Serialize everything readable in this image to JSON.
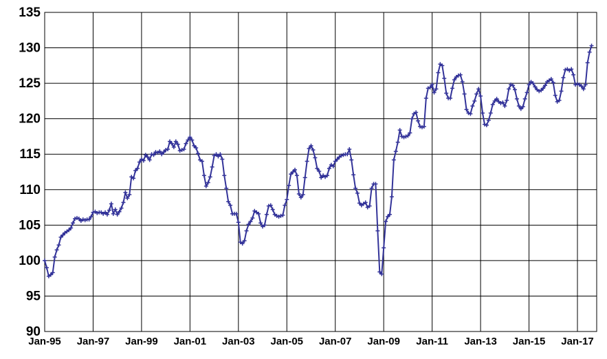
{
  "chart_data": {
    "type": "line",
    "categories": [
      "Jan-95",
      null,
      null,
      null,
      null,
      null,
      null,
      null,
      null,
      null,
      null,
      null,
      null,
      null,
      null,
      null,
      null,
      null,
      null,
      null,
      null,
      null,
      null,
      null,
      "Jan-97",
      null,
      null,
      null,
      null,
      null,
      null,
      null,
      null,
      null,
      null,
      null,
      null,
      null,
      null,
      null,
      null,
      null,
      null,
      null,
      null,
      null,
      null,
      null,
      "Jan-99",
      null,
      null,
      null,
      null,
      null,
      null,
      null,
      null,
      null,
      null,
      null,
      null,
      null,
      null,
      null,
      null,
      null,
      null,
      null,
      null,
      null,
      null,
      null,
      "Jan-01",
      null,
      null,
      null,
      null,
      null,
      null,
      null,
      null,
      null,
      null,
      null,
      null,
      null,
      null,
      null,
      null,
      null,
      null,
      null,
      null,
      null,
      null,
      null,
      "Jan-03",
      null,
      null,
      null,
      null,
      null,
      null,
      null,
      null,
      null,
      null,
      null,
      null,
      null,
      null,
      null,
      null,
      null,
      null,
      null,
      null,
      null,
      null,
      null,
      "Jan-05",
      null,
      null,
      null,
      null,
      null,
      null,
      null,
      null,
      null,
      null,
      null,
      null,
      null,
      null,
      null,
      null,
      null,
      null,
      null,
      null,
      null,
      null,
      null,
      "Jan-07",
      null,
      null,
      null,
      null,
      null,
      null,
      null,
      null,
      null,
      null,
      null,
      null,
      null,
      null,
      null,
      null,
      null,
      null,
      null,
      null,
      null,
      null,
      null,
      "Jan-09",
      null,
      null,
      null,
      null,
      null,
      null,
      null,
      null,
      null,
      null,
      null,
      null,
      null,
      null,
      null,
      null,
      null,
      null,
      null,
      null,
      null,
      null,
      null,
      "Jan-11",
      null,
      null,
      null,
      null,
      null,
      null,
      null,
      null,
      null,
      null,
      null,
      null,
      null,
      null,
      null,
      null,
      null,
      null,
      null,
      null,
      null,
      null,
      null,
      "Jan-13",
      null,
      null,
      null,
      null,
      null,
      null,
      null,
      null,
      null,
      null,
      null,
      null,
      null,
      null,
      null,
      null,
      null,
      null,
      null,
      null,
      null,
      null,
      null,
      "Jan-15",
      null,
      null,
      null,
      null,
      null,
      null,
      null,
      null,
      null,
      null,
      null,
      null,
      null,
      null,
      null,
      null,
      null,
      null,
      null,
      null,
      null,
      null,
      null,
      "Jan-17",
      null,
      null,
      null,
      null,
      null,
      null,
      null
    ],
    "series": [
      {
        "color": "#333399",
        "values": [
          100,
          99,
          97.8,
          98,
          98.3,
          100.5,
          101.5,
          102.2,
          103.3,
          103.6,
          103.9,
          104.1,
          104.3,
          104.6,
          105.3,
          105.9,
          106,
          105.9,
          105.6,
          105.8,
          105.7,
          105.8,
          105.8,
          106.2,
          106.8,
          106.9,
          106.7,
          106.8,
          106.8,
          106.6,
          106.8,
          106.5,
          107.1,
          108,
          106.6,
          107.2,
          106.5,
          106.9,
          107.4,
          108.2,
          109.6,
          108.8,
          109.3,
          111.8,
          111.6,
          112.7,
          113,
          113.9,
          114.3,
          114.1,
          114.9,
          114.6,
          114.2,
          115,
          114.9,
          115.3,
          115.2,
          115.4,
          115,
          115.3,
          115.6,
          115.7,
          116.8,
          116.5,
          116,
          116.8,
          116.4,
          115.5,
          115.6,
          115.7,
          116.5,
          117,
          117.4,
          117,
          116.2,
          115.9,
          115.1,
          114.2,
          114,
          112,
          110.5,
          111,
          111.8,
          113.2,
          114.8,
          115,
          114.7,
          115,
          114.3,
          112,
          110.2,
          108.3,
          107.8,
          106.6,
          106.6,
          106.6,
          105.4,
          102.6,
          102.4,
          102.8,
          104.2,
          105.1,
          105.5,
          106,
          107,
          106.8,
          106.6,
          105.3,
          104.8,
          105,
          106.5,
          107.7,
          107.8,
          107.2,
          106.5,
          106.3,
          106.2,
          106.3,
          106.4,
          107.8,
          108.6,
          110.6,
          112.2,
          112.5,
          112.8,
          112,
          109.4,
          108.9,
          109.3,
          111.7,
          114,
          115.8,
          116.2,
          115.6,
          114.5,
          113,
          112.6,
          111.7,
          112,
          111.8,
          112,
          113,
          113.5,
          113.3,
          114,
          114.3,
          114.6,
          114.8,
          114.9,
          115,
          115,
          115.7,
          114.2,
          112.1,
          110.2,
          109.5,
          108.1,
          107.8,
          108,
          108.2,
          107.5,
          107.7,
          110.2,
          110.8,
          110.8,
          104.2,
          98.4,
          98.1,
          101.8,
          105.5,
          106.2,
          106.5,
          109,
          114.2,
          115.4,
          116.7,
          118.4,
          117.5,
          117.4,
          117.5,
          117.6,
          118,
          120,
          120.7,
          120.9,
          119.7,
          118.9,
          118.8,
          118.9,
          122.9,
          124.3,
          124.4,
          124.8,
          123.7,
          124.2,
          126.5,
          127.7,
          127.5,
          125.7,
          123.6,
          122.9,
          122.9,
          124.3,
          125.5,
          125.9,
          126.1,
          126.2,
          125.2,
          123.5,
          121.3,
          120.8,
          120.7,
          121.8,
          122.5,
          123.5,
          124.2,
          123.2,
          120.8,
          119.2,
          119.1,
          119.8,
          120.8,
          122,
          122.5,
          122.8,
          122.4,
          122.2,
          122.3,
          121.8,
          122.6,
          124.2,
          124.8,
          124.7,
          124.1,
          122.8,
          121.8,
          121.4,
          121.7,
          122.8,
          123.7,
          124.8,
          125.2,
          125,
          124.5,
          124.1,
          123.9,
          124,
          124.3,
          124.7,
          125.2,
          125.4,
          125.6,
          125.1,
          123.3,
          122.4,
          122.6,
          123.9,
          125.8,
          126.9,
          127,
          126.8,
          127,
          126.2,
          124.8,
          124.9,
          124.8,
          124.6,
          124.2,
          124.8,
          127.9,
          129.4,
          130.3
        ]
      }
    ],
    "ylim": [
      90,
      135
    ],
    "yticks": [
      90,
      95,
      100,
      105,
      110,
      115,
      120,
      125,
      130,
      135
    ],
    "grid": true
  }
}
